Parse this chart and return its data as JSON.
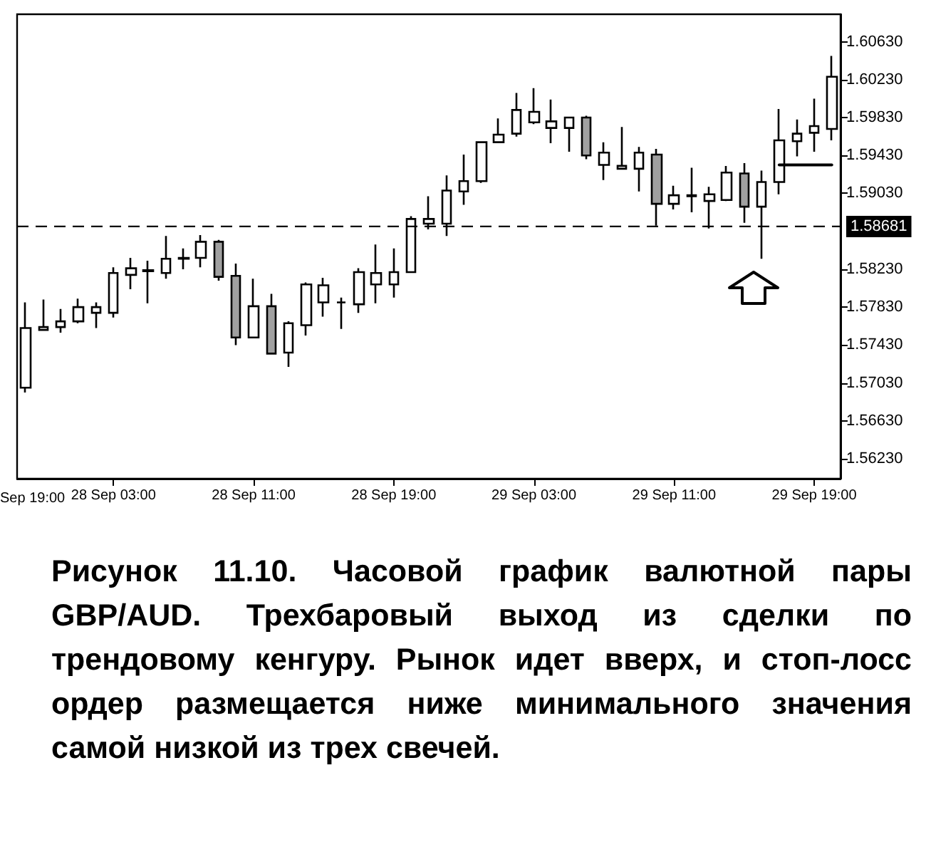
{
  "chart_data": {
    "type": "candlestick",
    "categories": [
      null,
      null,
      null,
      null,
      null,
      "28 Sep 03:00",
      null,
      null,
      null,
      null,
      null,
      null,
      null,
      "28 Sep 11:00",
      null,
      null,
      null,
      null,
      null,
      null,
      null,
      "28 Sep 19:00",
      null,
      null,
      null,
      null,
      null,
      null,
      null,
      "29 Sep 03:00",
      null,
      null,
      null,
      null,
      null,
      null,
      null,
      "29 Sep 11:00",
      null,
      null,
      null,
      null,
      null,
      null,
      null,
      "29 Sep 19:00",
      null
    ],
    "ohlc": [
      [
        1.5698,
        1.5788,
        1.5693,
        1.5761
      ],
      [
        1.5759,
        1.5791,
        1.5758,
        1.5762
      ],
      [
        1.5762,
        1.5781,
        1.5756,
        1.5768
      ],
      [
        1.5768,
        1.5792,
        1.5766,
        1.5783
      ],
      [
        1.5777,
        1.5788,
        1.5761,
        1.5783
      ],
      [
        1.5777,
        1.5825,
        1.5772,
        1.5819
      ],
      [
        1.5817,
        1.5835,
        1.5802,
        1.5824
      ],
      [
        1.5821,
        1.5832,
        1.5787,
        1.5822
      ],
      [
        1.5819,
        1.5858,
        1.5813,
        1.5834
      ],
      [
        1.5834,
        1.5845,
        1.5823,
        1.5835
      ],
      [
        1.5835,
        1.5859,
        1.5825,
        1.5852
      ],
      [
        1.5852,
        1.5854,
        1.5811,
        1.5815
      ],
      [
        1.5816,
        1.5829,
        1.5743,
        1.5751
      ],
      [
        1.5751,
        1.5813,
        1.575,
        1.5784
      ],
      [
        1.5784,
        1.5797,
        1.5733,
        1.5734
      ],
      [
        1.5735,
        1.5768,
        1.572,
        1.5766
      ],
      [
        1.5764,
        1.5809,
        1.5753,
        1.5807
      ],
      [
        1.5788,
        1.5814,
        1.5773,
        1.5806
      ],
      [
        1.5788,
        1.5793,
        1.576,
        1.5788
      ],
      [
        1.5786,
        1.5824,
        1.5777,
        1.582
      ],
      [
        1.5807,
        1.5849,
        1.5787,
        1.5819
      ],
      [
        1.5807,
        1.5845,
        1.5793,
        1.582
      ],
      [
        1.582,
        1.5879,
        1.5819,
        1.5876
      ],
      [
        1.5871,
        1.59,
        1.5865,
        1.5876
      ],
      [
        1.5871,
        1.5922,
        1.5858,
        1.5906
      ],
      [
        1.5905,
        1.5944,
        1.5891,
        1.5916
      ],
      [
        1.5916,
        1.5958,
        1.5914,
        1.5957
      ],
      [
        1.5957,
        1.5982,
        1.5956,
        1.5965
      ],
      [
        1.5966,
        1.6009,
        1.5963,
        1.5991
      ],
      [
        1.5978,
        1.6014,
        1.5976,
        1.5989
      ],
      [
        1.5972,
        1.6002,
        1.5956,
        1.5979
      ],
      [
        1.5972,
        1.5984,
        1.5947,
        1.5983
      ],
      [
        1.5983,
        1.5985,
        1.5939,
        1.5943
      ],
      [
        1.5933,
        1.5957,
        1.5917,
        1.5946
      ],
      [
        1.5929,
        1.5973,
        1.5928,
        1.5932
      ],
      [
        1.5929,
        1.5952,
        1.5905,
        1.5946
      ],
      [
        1.5944,
        1.595,
        1.5869,
        1.5892
      ],
      [
        1.5892,
        1.5911,
        1.5886,
        1.5901
      ],
      [
        1.59,
        1.593,
        1.5883,
        1.5901
      ],
      [
        1.5895,
        1.591,
        1.5866,
        1.5902
      ],
      [
        1.5896,
        1.5932,
        1.5895,
        1.5925
      ],
      [
        1.5924,
        1.5935,
        1.5872,
        1.5889
      ],
      [
        1.5889,
        1.5927,
        1.5834,
        1.5915
      ],
      [
        1.5915,
        1.5992,
        1.5902,
        1.5959
      ],
      [
        1.5958,
        1.5981,
        1.5942,
        1.5966
      ],
      [
        1.5967,
        1.6003,
        1.5947,
        1.5974
      ],
      [
        1.5971,
        1.6048,
        1.5959,
        1.6026
      ]
    ],
    "colors": [
      "#ffffff",
      "#ffffff",
      "#ffffff",
      "#ffffff",
      "#ffffff",
      "#ffffff",
      "#ffffff",
      "#ffffff",
      "#ffffff",
      "#ffffff",
      "#ffffff",
      "#a0a0a0",
      "#a0a0a0",
      "#ffffff",
      "#a0a0a0",
      "#ffffff",
      "#ffffff",
      "#ffffff",
      "#000000",
      "#ffffff",
      "#ffffff",
      "#ffffff",
      "#ffffff",
      "#ffffff",
      "#ffffff",
      "#ffffff",
      "#ffffff",
      "#ffffff",
      "#ffffff",
      "#ffffff",
      "#ffffff",
      "#ffffff",
      "#a0a0a0",
      "#ffffff",
      "#ffffff",
      "#ffffff",
      "#a0a0a0",
      "#ffffff",
      "#ffffff",
      "#ffffff",
      "#ffffff",
      "#a0a0a0",
      "#ffffff",
      "#ffffff",
      "#ffffff",
      "#ffffff",
      "#ffffff"
    ],
    "series": [
      {
        "type": "line",
        "color": "#000000",
        "values": [
          null,
          null,
          null,
          null,
          null,
          null,
          null,
          null,
          null,
          null,
          null,
          null,
          null,
          null,
          null,
          null,
          null,
          null,
          null,
          null,
          null,
          null,
          null,
          null,
          null,
          null,
          null,
          null,
          null,
          null,
          null,
          null,
          null,
          null,
          null,
          null,
          null,
          null,
          null,
          null,
          null,
          null,
          null,
          1.5933,
          1.5933,
          1.5933,
          1.5933
        ]
      }
    ],
    "ylim": [
      1.5602,
      1.6092
    ],
    "yticks": [
      {
        "value": 1.5623,
        "label": "1.56230"
      },
      {
        "value": 1.5663,
        "label": "1.56630"
      },
      {
        "value": 1.5703,
        "label": "1.57030"
      },
      {
        "value": 1.5743,
        "label": "1.57430"
      },
      {
        "value": 1.5783,
        "label": "1.57830"
      },
      {
        "value": 1.5823,
        "label": "1.58230"
      },
      {
        "value": 1.5903,
        "label": "1.59030"
      },
      {
        "value": 1.5943,
        "label": "1.59430"
      },
      {
        "value": 1.5983,
        "label": "1.59830"
      },
      {
        "value": 1.6023,
        "label": "1.60230"
      },
      {
        "value": 1.6063,
        "label": "1.60630"
      }
    ],
    "ref_lines": [
      {
        "axis": "y",
        "value": 1.58681,
        "label": "1.58681",
        "color": "#000000",
        "line_style": "dashed"
      }
    ],
    "grid": false,
    "annotations": [
      "Sep 19:00",
      "Рисунок 11.10. Часовой график валютной пары GBP/AUD. Трехбаровый выход из сделки по трендовому кенгуру. Рынок идет вверх, и стоп-лосс ордер размещается ниже минимального значения самой низкой из трех свечей."
    ]
  }
}
